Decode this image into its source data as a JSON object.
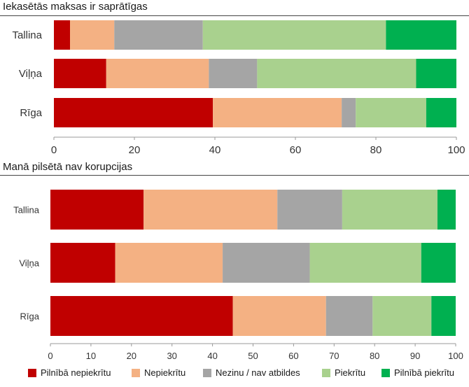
{
  "chart_data": [
    {
      "type": "bar",
      "orientation": "horizontal",
      "stacked": true,
      "title": "Iekasētās maksas ir saprātīgas",
      "categories": [
        "Tallina",
        "Viļņa",
        "Rīga"
      ],
      "series": [
        {
          "name": "Pilnībā nepiekrītu",
          "values": [
            4,
            13,
            39.5
          ]
        },
        {
          "name": "Nepiekrītu",
          "values": [
            11,
            25.5,
            32
          ]
        },
        {
          "name": "Nezinu / nav atbildes",
          "values": [
            22,
            12,
            3.5
          ]
        },
        {
          "name": "Piekrītu",
          "values": [
            45.5,
            39.5,
            17.5
          ]
        },
        {
          "name": "Pilnībā piekrītu",
          "values": [
            17.5,
            10,
            7.5
          ]
        }
      ],
      "xlim": [
        0,
        100
      ],
      "xticks": [
        0,
        20,
        40,
        60,
        80,
        100
      ],
      "grid": false
    },
    {
      "type": "bar",
      "orientation": "horizontal",
      "stacked": true,
      "title": "Manā pilsētā nav korupcijas",
      "categories": [
        "Tallina",
        "Viļņa",
        "Rīga"
      ],
      "series": [
        {
          "name": "Pilnībā nepiekrītu",
          "values": [
            23,
            16,
            45
          ]
        },
        {
          "name": "Nepiekrītu",
          "values": [
            33,
            26.5,
            23
          ]
        },
        {
          "name": "Nezinu / nav atbildes",
          "values": [
            16,
            21.5,
            11.5
          ]
        },
        {
          "name": "Piekrītu",
          "values": [
            23.5,
            27.5,
            14.5
          ]
        },
        {
          "name": "Pilnībā piekrītu",
          "values": [
            4.5,
            8.5,
            6
          ]
        }
      ],
      "xlim": [
        0,
        100
      ],
      "xticks": [
        0,
        10,
        20,
        30,
        40,
        50,
        60,
        70,
        80,
        90,
        100
      ],
      "grid": false
    }
  ],
  "legend": {
    "placement": "bottom",
    "items": [
      {
        "label": "Pilnībā nepiekrītu",
        "color": "#c00000"
      },
      {
        "label": "Nepiekrītu",
        "color": "#f4b183"
      },
      {
        "label": "Nezinu / nav atbildes",
        "color": "#a5a5a5"
      },
      {
        "label": "Piekrītu",
        "color": "#a9d18e"
      },
      {
        "label": "Pilnībā piekrītu",
        "color": "#00b050"
      }
    ]
  }
}
